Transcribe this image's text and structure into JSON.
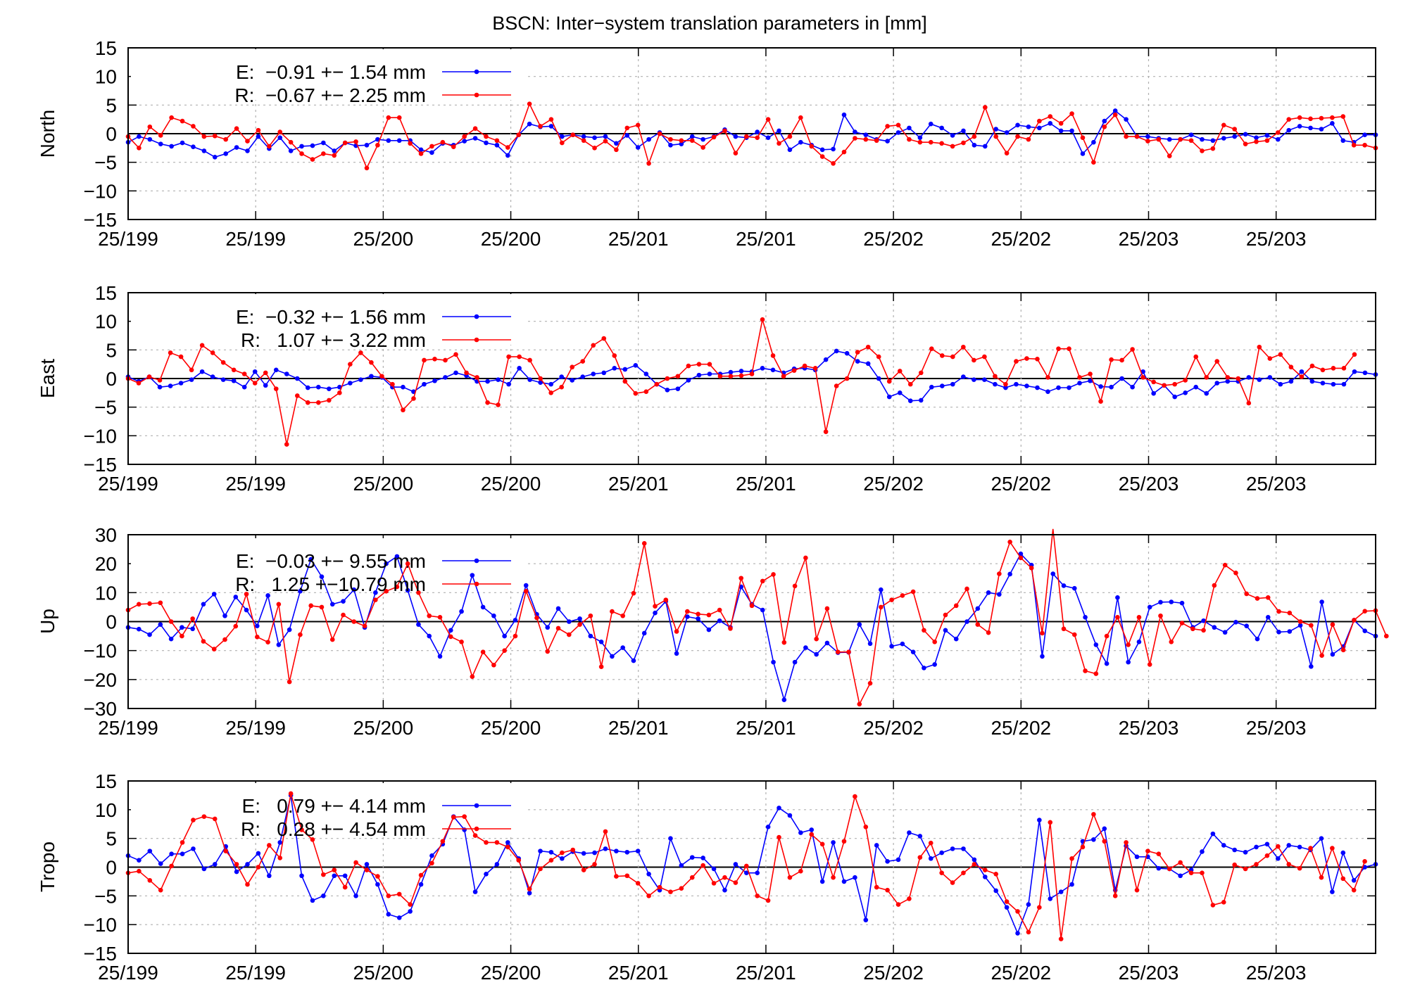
{
  "title": "BSCN: Inter−system translation parameters in [mm]",
  "colors": {
    "E": "#0000ff",
    "R": "#ff0000"
  },
  "chart_data": [
    {
      "type": "line",
      "ylabel": "North",
      "ylim": [
        -15,
        15
      ],
      "yticks": [
        "15",
        "10",
        "5",
        "0",
        "−5",
        "−10",
        "−15"
      ],
      "xticks": [
        "25/199",
        "25/199",
        "25/200",
        "25/200",
        "25/201",
        "25/201",
        "25/202",
        "25/202",
        "25/203",
        "25/203"
      ],
      "grid": true,
      "series": [
        {
          "name": "E",
          "legend": "E:  −0.91 +− 1.54 mm",
          "values": [
            -1.5,
            -0.5,
            -1,
            -1.8,
            -2.2,
            -1.6,
            -2.3,
            -3,
            -4.1,
            -3.5,
            -2.4,
            -3,
            -0.5,
            -2.6,
            -0.7,
            -3,
            -2.2,
            -2.1,
            -1.6,
            -3,
            -1.6,
            -2.1,
            -2,
            -1,
            -1.2,
            -1.2,
            -1.2,
            -2.8,
            -3.3,
            -1.7,
            -2,
            -1.3,
            -0.8,
            -1.6,
            -2,
            -3.8,
            -0.2,
            1.7,
            1.2,
            1.3,
            -0.5,
            -0.2,
            -0.5,
            -0.7,
            -0.5,
            -1.7,
            -0.3,
            -2.4,
            -1,
            0.2,
            -2,
            -1.8,
            -0.5,
            -1,
            -0.5,
            0.7,
            -0.5,
            -0.7,
            0.3,
            -0.7,
            0.5,
            -2.8,
            -1.5,
            -2,
            -2.8,
            -2.7,
            3.3,
            0.3,
            -0.2,
            -1,
            -1.3,
            0.2,
            1,
            -0.7,
            1.7,
            1,
            -0.3,
            0.5,
            -2,
            -2.2,
            0.8,
            0.2,
            1.5,
            1.2,
            1,
            1.8,
            0.5,
            0.5,
            -3.5,
            -1.5,
            2.2,
            4,
            2.5,
            -0.5,
            -0.5,
            -0.8,
            -1,
            -1,
            -0.2,
            -1,
            -1.2,
            -0.8,
            -0.5,
            -0.1,
            -0.7,
            -0.3,
            -1,
            0.6,
            1.3,
            1,
            0.8,
            1.8,
            -1.2,
            -1.5,
            -0.2,
            -0.2
          ]
        },
        {
          "name": "R",
          "legend": "R:  −0.67 +− 2.25 mm",
          "values": [
            -0.5,
            -2.5,
            1.2,
            -0.3,
            2.8,
            2.2,
            1.3,
            -0.5,
            -0.4,
            -1,
            0.9,
            -1.3,
            0.6,
            -2.2,
            0.3,
            -1.5,
            -3.5,
            -4.5,
            -3.5,
            -3.8,
            -1.6,
            -1.4,
            -6,
            -2,
            2.8,
            2.8,
            -1.7,
            -3.5,
            -2.2,
            -1.5,
            -2.3,
            -0.5,
            0.9,
            -0.5,
            -1.2,
            -2.4,
            -0.2,
            5.2,
            1.3,
            2.5,
            -1.6,
            -0.2,
            -1.2,
            -2.5,
            -1.3,
            -2.8,
            1,
            1.5,
            -5.2,
            0,
            -1,
            -1.2,
            -1.2,
            -2.4,
            -0.6,
            0.5,
            -3.4,
            -0.5,
            -0.7,
            2.5,
            -1.7,
            -0.5,
            2.8,
            -2.2,
            -4,
            -5.2,
            -3.2,
            -0.8,
            -1,
            -1.2,
            1.3,
            1.5,
            -1,
            -1.5,
            -1.5,
            -1.7,
            -2.2,
            -1.6,
            -0.5,
            4.6,
            -0.5,
            -3.4,
            -0.5,
            -1,
            2.2,
            3,
            1.8,
            3.5,
            -0.7,
            -5,
            1.2,
            3.3,
            -0.5,
            -0.5,
            -1.3,
            -1,
            -3.9,
            -1,
            -1.2,
            -3,
            -2.6,
            1.5,
            0.8,
            -1.8,
            -1.4,
            -1.2,
            0.2,
            2.5,
            2.8,
            2.6,
            2.7,
            2.8,
            3,
            -2,
            -2,
            -2.5
          ]
        }
      ]
    },
    {
      "type": "line",
      "ylabel": "East",
      "ylim": [
        -15,
        15
      ],
      "yticks": [
        "15",
        "10",
        "5",
        "0",
        "−5",
        "−10",
        "−15"
      ],
      "xticks": [
        "25/199",
        "25/199",
        "25/200",
        "25/200",
        "25/201",
        "25/201",
        "25/202",
        "25/202",
        "25/203",
        "25/203"
      ],
      "grid": true,
      "series": [
        {
          "name": "E",
          "legend": "E:  −0.32 +− 1.56 mm",
          "values": [
            0.3,
            -0.5,
            0.3,
            -1.5,
            -1.3,
            -0.8,
            -0.2,
            1.2,
            0.3,
            -0.2,
            -0.4,
            -1.5,
            1.2,
            -1.2,
            1.5,
            0.8,
            0,
            -1.6,
            -1.5,
            -1.8,
            -1.5,
            -0.8,
            -0.2,
            0.4,
            0.2,
            -1.5,
            -1.5,
            -2.3,
            -1,
            -0.4,
            0.2,
            1,
            0.5,
            -0.5,
            -0.5,
            -0.2,
            -1,
            1.8,
            -0.2,
            -0.7,
            -1,
            0.3,
            -0.3,
            0.3,
            0.8,
            1,
            1.8,
            1.6,
            2.3,
            0.8,
            -1,
            -2,
            -1.8,
            -0.3,
            0.6,
            0.8,
            0.8,
            1.1,
            1.3,
            1.2,
            1.8,
            1.5,
            1,
            1.7,
            1.8,
            1.5,
            3.3,
            4.8,
            4.4,
            3,
            2.6,
            0,
            -3.2,
            -2.5,
            -3.9,
            -3.8,
            -1.5,
            -1.3,
            -1,
            0.3,
            -0.2,
            -0.2,
            -1,
            -1.6,
            -1,
            -1.3,
            -1.6,
            -2.3,
            -1.6,
            -1.6,
            -0.8,
            -0.4,
            -1.4,
            -1.5,
            0,
            -1.5,
            1.2,
            -2.6,
            -1.2,
            -3.2,
            -2.5,
            -1.5,
            -2.6,
            -0.8,
            -0.5,
            -0.5,
            0.2,
            -0.2,
            0.2,
            -1,
            -0.5,
            1.2,
            -0.5,
            -0.8,
            -1,
            -1,
            1.2,
            1,
            0.7
          ]
        },
        {
          "name": "R",
          "legend": "R:   1.07 +− 3.22 mm",
          "values": [
            0,
            -0.8,
            0.3,
            -0.3,
            4.5,
            3.8,
            1.5,
            5.8,
            4.5,
            2.8,
            1.5,
            0.8,
            -0.8,
            1,
            -1.8,
            -11.5,
            -3,
            -4.2,
            -4.2,
            -3.8,
            -2.5,
            2.5,
            4.5,
            2.8,
            0.4,
            -1,
            -5.5,
            -3.5,
            3.2,
            3.4,
            3.2,
            4.2,
            1,
            0.2,
            -4.2,
            -4.6,
            3.8,
            3.8,
            3.2,
            0,
            -2.5,
            -1.5,
            2,
            3,
            5.8,
            7,
            4,
            -0.5,
            -2.6,
            -2.3,
            -1,
            0,
            0.4,
            2.2,
            2.5,
            2.5,
            0.4,
            0.4,
            0.5,
            0.8,
            10.3,
            4,
            0.4,
            1.4,
            2.2,
            1.8,
            -9.3,
            -1.3,
            0,
            4.6,
            5.5,
            3.8,
            -0.5,
            1.3,
            -1,
            1,
            5.2,
            4,
            3.8,
            5.5,
            3.2,
            3.8,
            0.4,
            -1,
            3,
            3.5,
            3.4,
            0.2,
            5.2,
            5.2,
            0.2,
            0.8,
            -4,
            3.3,
            3.2,
            5.1,
            0.2,
            -0.6,
            -1.2,
            -1,
            -0.3,
            3.8,
            0.2,
            3,
            0.2,
            0,
            -4.3,
            5.5,
            3.5,
            4.2,
            2,
            0.3,
            2.2,
            1.5,
            1.8,
            1.8,
            4.2
          ]
        }
      ]
    },
    {
      "type": "line",
      "ylabel": "Up",
      "ylim": [
        -30,
        30
      ],
      "yticks": [
        "30",
        "20",
        "10",
        "0",
        "−10",
        "−20",
        "−30"
      ],
      "xticks": [
        "25/199",
        "25/199",
        "25/200",
        "25/200",
        "25/201",
        "25/201",
        "25/202",
        "25/202",
        "25/203",
        "25/203"
      ],
      "grid": true,
      "series": [
        {
          "name": "E",
          "legend": "E:  −0.03 +− 9.55 mm",
          "values": [
            -2,
            -2.6,
            -4.5,
            -1,
            -6,
            -2,
            -2.5,
            6,
            9.5,
            2,
            8.5,
            4,
            -1.5,
            9,
            -8,
            -2.8,
            10.5,
            21.5,
            15.5,
            6,
            7,
            11,
            -2,
            10,
            20,
            22.5,
            10.8,
            -1,
            -5,
            -12,
            -3,
            3.5,
            16,
            5,
            2,
            -5,
            0.5,
            12.5,
            2.5,
            -2,
            4.5,
            0,
            1,
            -5,
            -7,
            -12,
            -9,
            -13.5,
            -4,
            3,
            7,
            -11,
            1.7,
            1,
            -2.8,
            0.3,
            -2,
            12,
            6,
            4,
            -14,
            -27,
            -14,
            -9,
            -11.3,
            -7.4,
            -10.7,
            -10.6,
            -1,
            -7.6,
            11,
            -8.5,
            -7.7,
            -10.5,
            -16,
            -14.8,
            -3,
            -6,
            0,
            4.5,
            10,
            9.4,
            16.4,
            23.4,
            19.5,
            -12,
            16.5,
            12.4,
            11.5,
            1.5,
            -8,
            -14.5,
            8.3,
            -14,
            -7,
            5,
            6.7,
            6.8,
            6.4,
            -2,
            0.3,
            -2,
            -3.7,
            -0.2,
            -1.5,
            -6,
            1.5,
            -3.6,
            -3.4,
            -1.3,
            -15.5,
            6.8,
            -11.3,
            -8.6,
            0.5,
            -3.2,
            -5
          ]
        },
        {
          "name": "R",
          "legend": "R:   1.25 +−10.79 mm",
          "values": [
            4,
            6,
            6.2,
            6.5,
            0,
            -5,
            1,
            -6.8,
            -9.5,
            -6.2,
            -1.6,
            9.5,
            -5.3,
            -7.1,
            6,
            -20.8,
            -4.5,
            5.5,
            5,
            -6.2,
            2.3,
            0,
            -1.5,
            7.5,
            10.5,
            12,
            20,
            10,
            2,
            1.5,
            -5.2,
            -7,
            -19,
            -10.5,
            -15,
            -10,
            -5,
            10.5,
            1.3,
            -10.3,
            -2.3,
            -4.5,
            -1,
            2,
            -15.6,
            3.5,
            2,
            9.8,
            27,
            5.3,
            7.5,
            -3.4,
            3.5,
            2.6,
            2.3,
            4,
            -2.4,
            15,
            5.5,
            14,
            16.3,
            -7.2,
            12.3,
            22,
            -6,
            4.5,
            -10.5,
            -10.5,
            -28.5,
            -21.3,
            5,
            7.5,
            9,
            10.3,
            -3,
            -7,
            2.3,
            5.5,
            11.3,
            -1,
            -3.8,
            16.5,
            27.5,
            22,
            18.5,
            -4,
            32,
            -2.5,
            -4.5,
            -17,
            -18,
            -5,
            1.5,
            -8,
            1.5,
            -14.8,
            2,
            -7,
            -0.5,
            -2.5,
            -3,
            12.5,
            19.5,
            16.8,
            9.6,
            8,
            8.3,
            3.5,
            3,
            0,
            -1.3,
            -11.7,
            -1,
            -9.8,
            0.5,
            3.6,
            3.8,
            -5
          ]
        }
      ]
    },
    {
      "type": "line",
      "ylabel": "Tropo",
      "ylim": [
        -15,
        15
      ],
      "yticks": [
        "15",
        "10",
        "5",
        "0",
        "−5",
        "−10",
        "−15"
      ],
      "xticks": [
        "25/199",
        "25/199",
        "25/200",
        "25/200",
        "25/201",
        "25/201",
        "25/202",
        "25/202",
        "25/203",
        "25/203"
      ],
      "grid": true,
      "series": [
        {
          "name": "E",
          "legend": "E:   0.79 +− 4.14 mm",
          "values": [
            2,
            1.2,
            2.8,
            0.6,
            2.3,
            2.3,
            3.2,
            -0.3,
            0.5,
            3.6,
            -0.8,
            0.5,
            2.4,
            -1.5,
            4.3,
            12.5,
            -1.5,
            -5.8,
            -5,
            -1.5,
            -1.5,
            -5,
            0.5,
            -3,
            -8.2,
            -8.8,
            -7.7,
            -3,
            2,
            4,
            8.8,
            6.5,
            -4.3,
            -1.2,
            0.5,
            4.3,
            1.5,
            -4.5,
            2.8,
            2.6,
            1.5,
            2.7,
            2.4,
            2.5,
            3.2,
            2.8,
            2.6,
            2.8,
            -1.2,
            -4,
            5,
            0.3,
            1.7,
            1.6,
            -0.3,
            -4,
            0.5,
            -1,
            -1,
            7,
            10.3,
            9,
            6,
            6.5,
            -2.5,
            4.3,
            -2.5,
            -1.8,
            -9.2,
            3.8,
            1,
            1.3,
            6,
            5.4,
            1.5,
            2.5,
            3.2,
            3.2,
            1.3,
            -1.7,
            -4.1,
            -7,
            -11.5,
            -6.5,
            8.2,
            -5.5,
            -4.3,
            -3,
            4.5,
            4.8,
            6.7,
            -4,
            3.7,
            1.8,
            1.8,
            -0.2,
            -0.3,
            -1.5,
            -0.5,
            2.7,
            5.8,
            3.8,
            3,
            2.6,
            3.5,
            4,
            1.5,
            3.8,
            3.5,
            3,
            5,
            -4.3,
            2.5,
            -2.3,
            0,
            0.5
          ]
        },
        {
          "name": "R",
          "legend": "R:   0.28 +− 4.54 mm",
          "values": [
            -1,
            -0.7,
            -2.3,
            -4,
            0.2,
            4.3,
            8.2,
            8.8,
            8.4,
            2.8,
            0.5,
            -3,
            0,
            3.8,
            1.6,
            12.8,
            6.5,
            4.8,
            -1.3,
            -0.5,
            -3.5,
            0.8,
            -0.5,
            -1.6,
            -5,
            -4.7,
            -6.5,
            -1.4,
            0.7,
            4.5,
            8.7,
            8.8,
            5.5,
            4.3,
            4.3,
            3.5,
            1.2,
            -3.8,
            -0.3,
            1.2,
            2.5,
            3,
            -0.5,
            0.5,
            6.2,
            -1.6,
            -1.5,
            -2.8,
            -5,
            -3.5,
            -4.3,
            -3.7,
            -1.8,
            0.3,
            -2.8,
            -1.8,
            -2.7,
            0.2,
            -5,
            -5.8,
            5.2,
            -1.8,
            -0.7,
            5.7,
            4,
            -1.8,
            4.5,
            12.3,
            7,
            -3.5,
            -4,
            -6.5,
            -5.5,
            1.7,
            4.2,
            -1,
            -2.7,
            -1,
            0.5,
            -0.5,
            -1.2,
            -6,
            -7.7,
            -11.3,
            -7,
            7.8,
            -12.5,
            1.5,
            3.5,
            9.2,
            4.5,
            -5,
            4.3,
            -4,
            2.8,
            2.3,
            -0.3,
            0.8,
            -1,
            -1,
            -6.6,
            -6.1,
            0.4,
            -0.3,
            0.5,
            2,
            3.6,
            0.5,
            -0.2,
            3.3,
            -1.8,
            3.3,
            -2,
            -4,
            1
          ]
        }
      ]
    }
  ]
}
